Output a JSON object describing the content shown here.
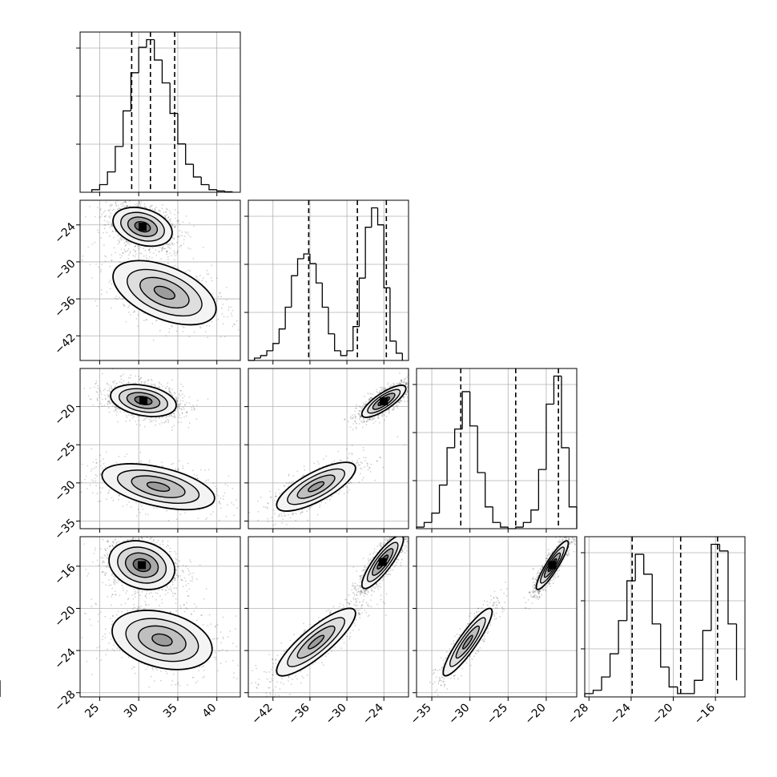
{
  "figure": {
    "type": "corner-plot",
    "n_params": 4,
    "colors": {
      "ink": "#000000",
      "grid": "#b0b0b0",
      "frame": "#000000",
      "density": "#000000",
      "background": "#ffffff"
    }
  },
  "chart_data": [
    {
      "type": "histogram",
      "panel": "hist-1",
      "bins": [
        24.0,
        25.0,
        26.0,
        27.0,
        28.0,
        29.0,
        30.0,
        31.0,
        32.0,
        33.0,
        34.0,
        35.0,
        36.0,
        37.0,
        38.0,
        39.0,
        40.0,
        41.0,
        42.0
      ],
      "values": [
        1,
        3,
        8,
        18,
        32,
        47,
        57,
        60,
        52,
        43,
        31,
        19,
        11,
        6,
        3,
        1,
        0.5,
        0.2
      ],
      "quantile_lines": [
        29.1,
        31.5,
        34.6
      ],
      "xlim": [
        22.5,
        43.0
      ],
      "x_ticks": [
        25,
        30,
        35,
        40
      ]
    },
    {
      "type": "histogram",
      "panel": "hist-2",
      "bins": [
        -46.0,
        -45.0,
        -44.0,
        -43.0,
        -42.0,
        -41.0,
        -40.0,
        -39.0,
        -38.0,
        -37.0,
        -36.0,
        -35.0,
        -34.0,
        -33.0,
        -32.0,
        -31.0,
        -30.0,
        -29.0,
        -28.0,
        -27.0,
        -26.0,
        -25.0,
        -24.0,
        -23.0,
        -22.0,
        -21.0
      ],
      "values": [
        0,
        1,
        2,
        4,
        7,
        13,
        22,
        35,
        42,
        44,
        40,
        32,
        22,
        11,
        4,
        2,
        4,
        14,
        34,
        55,
        63,
        56,
        30,
        8,
        3
      ],
      "quantile_lines": [
        -36.2,
        -28.3,
        -23.6
      ],
      "xlim": [
        -46.0,
        -20.0
      ],
      "x_ticks": [
        -42,
        -36,
        -30,
        -24
      ]
    },
    {
      "type": "histogram",
      "panel": "hist-3",
      "bins": [
        -37.0,
        -36.0,
        -35.0,
        -34.0,
        -33.0,
        -32.0,
        -31.0,
        -30.0,
        -29.0,
        -28.0,
        -27.0,
        -26.0,
        -25.0,
        -24.0,
        -23.0,
        -22.0,
        -21.0,
        -20.0,
        -19.0,
        -18.0,
        -17.0,
        -16.0
      ],
      "values": [
        0.5,
        2,
        5,
        14,
        26,
        32,
        44,
        33,
        18,
        7,
        2,
        0.5,
        0,
        0.5,
        2,
        6,
        19,
        40,
        49,
        26,
        7
      ],
      "quantile_lines": [
        -31.2,
        -24.0,
        -18.4
      ],
      "xlim": [
        -37.0,
        -16.0
      ],
      "x_ticks": [
        -35,
        -30,
        -25,
        -20
      ]
    },
    {
      "type": "histogram",
      "panel": "hist-4",
      "bins": [
        -28.4,
        -27.6,
        -26.8,
        -26.0,
        -25.2,
        -24.4,
        -23.6,
        -22.8,
        -22.0,
        -21.2,
        -20.4,
        -19.6,
        -18.8,
        -18.0,
        -17.2,
        -16.4,
        -15.6,
        -14.8,
        -14.0
      ],
      "values": [
        1,
        2,
        6,
        13,
        23,
        35,
        43,
        37,
        22,
        9,
        3,
        1,
        1,
        5,
        20,
        46,
        44,
        22,
        5
      ],
      "quantile_lines": [
        -23.9,
        -19.3,
        -15.8
      ],
      "xlim": [
        -28.4,
        -13.2
      ],
      "x_ticks": [
        -28,
        -24,
        -20,
        -16
      ]
    },
    {
      "type": "scatter-density",
      "panel": "pair-2-1",
      "xlim": [
        22.5,
        43.0
      ],
      "ylim": [
        -46.0,
        -20.0
      ],
      "x_ticks": [
        25,
        30,
        35,
        40
      ],
      "y_ticks": [
        -24,
        -30,
        -36,
        -42
      ],
      "modes": [
        {
          "mean": [
            30.5,
            -24.3
          ],
          "sigma": [
            1.8,
            1.5
          ],
          "rho": -0.3,
          "weight": 1.0
        },
        {
          "mean": [
            33.3,
            -35.0
          ],
          "sigma": [
            3.3,
            2.6
          ],
          "rho": -0.5,
          "weight": 0.55
        }
      ]
    },
    {
      "type": "scatter-density",
      "panel": "pair-3-1",
      "xlim": [
        22.5,
        43.0
      ],
      "ylim": [
        -36.0,
        -15.0
      ],
      "x_ticks": [
        25,
        30,
        35,
        40
      ],
      "y_ticks": [
        -20,
        -25,
        -30,
        -35
      ],
      "modes": [
        {
          "mean": [
            30.6,
            -19.2
          ],
          "sigma": [
            2.0,
            1.0
          ],
          "rho": -0.3,
          "weight": 1.0
        },
        {
          "mean": [
            32.5,
            -30.5
          ],
          "sigma": [
            3.6,
            1.5
          ],
          "rho": -0.5,
          "weight": 0.55
        }
      ]
    },
    {
      "type": "scatter-density",
      "panel": "pair-4-1",
      "xlim": [
        22.5,
        43.0
      ],
      "ylim": [
        -28.4,
        -13.2
      ],
      "x_ticks": [
        25,
        30,
        35,
        40
      ],
      "y_ticks": [
        -16,
        -20,
        -24,
        -28
      ],
      "modes": [
        {
          "mean": [
            30.4,
            -15.9
          ],
          "sigma": [
            2.0,
            1.1
          ],
          "rho": -0.2,
          "weight": 1.0
        },
        {
          "mean": [
            33.0,
            -23.0
          ],
          "sigma": [
            3.2,
            1.4
          ],
          "rho": -0.3,
          "weight": 0.55
        }
      ]
    },
    {
      "type": "scatter-density",
      "panel": "pair-3-2",
      "xlim": [
        -46.0,
        -20.0
      ],
      "ylim": [
        -36.0,
        -15.0
      ],
      "x_ticks": [
        -42,
        -36,
        -30,
        -24
      ],
      "y_ticks": [
        -20,
        -25,
        -30,
        -35
      ],
      "modes": [
        {
          "mean": [
            -24.0,
            -19.3
          ],
          "sigma": [
            1.7,
            1.0
          ],
          "rho": 0.8,
          "weight": 1.0
        },
        {
          "mean": [
            -35.0,
            -30.5
          ],
          "sigma": [
            3.2,
            1.6
          ],
          "rho": 0.75,
          "weight": 0.55
        }
      ]
    },
    {
      "type": "scatter-density",
      "panel": "pair-4-2",
      "xlim": [
        -46.0,
        -20.0
      ],
      "ylim": [
        -28.4,
        -13.2
      ],
      "x_ticks": [
        -42,
        -36,
        -30,
        -24
      ],
      "y_ticks": [
        -16,
        -20,
        -24,
        -28
      ],
      "modes": [
        {
          "mean": [
            -24.2,
            -15.6
          ],
          "sigma": [
            1.6,
            1.2
          ],
          "rho": 0.85,
          "weight": 1.0
        },
        {
          "mean": [
            -35.0,
            -23.2
          ],
          "sigma": [
            3.2,
            1.6
          ],
          "rho": 0.85,
          "weight": 0.55
        }
      ]
    },
    {
      "type": "scatter-density",
      "panel": "pair-4-3",
      "xlim": [
        -37.0,
        -16.0
      ],
      "ylim": [
        -28.4,
        -13.2
      ],
      "x_ticks": [
        -35,
        -30,
        -25,
        -20
      ],
      "y_ticks": [
        -16,
        -20,
        -24,
        -28
      ],
      "modes": [
        {
          "mean": [
            -19.2,
            -15.9
          ],
          "sigma": [
            1.0,
            1.1
          ],
          "rho": 0.9,
          "weight": 1.0
        },
        {
          "mean": [
            -30.3,
            -23.2
          ],
          "sigma": [
            1.6,
            1.6
          ],
          "rho": 0.9,
          "weight": 0.55
        }
      ]
    }
  ]
}
